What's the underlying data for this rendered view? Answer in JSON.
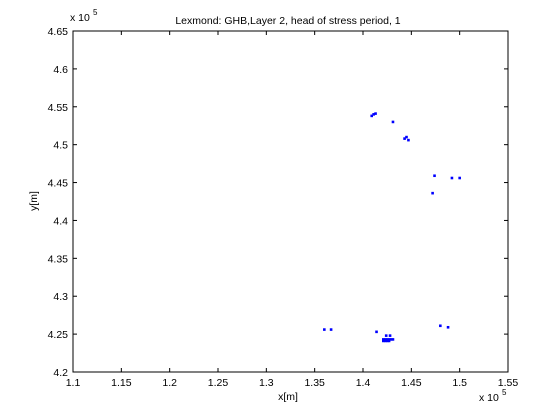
{
  "chart_data": {
    "type": "scatter",
    "title": "Lexmond: GHB,Layer 2, head of stress period, 1",
    "xlabel": "x[m]",
    "ylabel": "y[m]",
    "xlim": [
      1.1,
      1.55
    ],
    "ylim": [
      4.2,
      4.65
    ],
    "x_ticks": [
      "1.1",
      "1.15",
      "1.2",
      "1.25",
      "1.3",
      "1.35",
      "1.4",
      "1.45",
      "1.5",
      "1.55"
    ],
    "y_ticks": [
      "4.2",
      "4.25",
      "4.3",
      "4.35",
      "4.4",
      "4.45",
      "4.5",
      "4.55",
      "4.6",
      "4.65"
    ],
    "x_multiplier": {
      "base": "x 10",
      "exponent": "5"
    },
    "y_multiplier": {
      "base": "x 10",
      "exponent": "5"
    },
    "grid": false,
    "marker_color": "#0000ff",
    "points": [
      [
        1.409,
        4.538
      ],
      [
        1.411,
        4.54
      ],
      [
        1.413,
        4.541
      ],
      [
        1.431,
        4.53
      ],
      [
        1.443,
        4.508
      ],
      [
        1.445,
        4.51
      ],
      [
        1.447,
        4.506
      ],
      [
        1.474,
        4.459
      ],
      [
        1.492,
        4.456
      ],
      [
        1.5,
        4.456
      ],
      [
        1.472,
        4.436
      ],
      [
        1.36,
        4.256
      ],
      [
        1.367,
        4.256
      ],
      [
        1.414,
        4.253
      ],
      [
        1.424,
        4.248
      ],
      [
        1.428,
        4.248
      ],
      [
        1.421,
        4.243
      ],
      [
        1.423,
        4.243
      ],
      [
        1.425,
        4.243
      ],
      [
        1.427,
        4.243
      ],
      [
        1.429,
        4.243
      ],
      [
        1.431,
        4.243
      ],
      [
        1.421,
        4.241
      ],
      [
        1.423,
        4.241
      ],
      [
        1.425,
        4.241
      ],
      [
        1.427,
        4.241
      ],
      [
        1.48,
        4.261
      ],
      [
        1.488,
        4.259
      ]
    ]
  }
}
